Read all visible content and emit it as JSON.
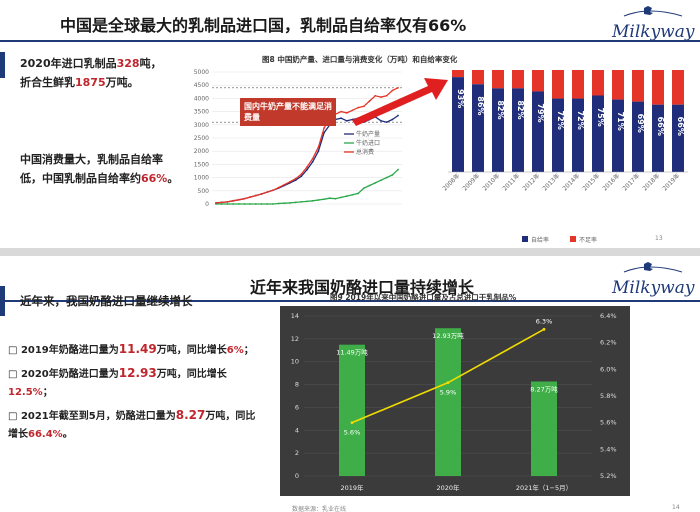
{
  "slide1": {
    "title": "中国是全球最大的乳制品进口国，乳制品自给率仅有66%",
    "logo": "Milkyway",
    "para1": {
      "pre": "2020年进口乳制品",
      "v1": "328",
      "mid": "吨，折合生鲜乳",
      "v2": "1875",
      "post": "万吨。"
    },
    "para2": {
      "pre": "中国消费量大，乳制品自给率低，中国乳制品自给率约",
      "v": "66%",
      "post": "。"
    },
    "left_chart": {
      "title": "图8 中国奶产量、进口量与消费变化（万吨）和自给率变化",
      "callout": "国内牛奶产量不能满足消费量"
    },
    "page_number": "13",
    "colors": {
      "selfsufficiency": "#1f2d7a",
      "shortfall": "#e53528",
      "callout_bg": "#c0392b"
    }
  },
  "slide2": {
    "title": "近年来我国奶酪进口量持续增长",
    "logo": "Milkyway",
    "heading": "近年来，我国奶酪进口量继续增长",
    "bullets": [
      {
        "a": "2019年奶酪进口量为",
        "v1": "11.49",
        "b": "万吨，同比增长",
        "v2": "6%",
        "c": "；"
      },
      {
        "a": "2020年奶酪进口量为",
        "v1": "12.93",
        "b": "万吨，同比增长",
        "v2": "12.5%",
        "c": "；"
      },
      {
        "a": "2021年截至到5月，奶酪进口量为",
        "v1": "8.27",
        "b": "万吨，同比增长",
        "v2": "66.4%",
        "c": "。"
      }
    ],
    "bullet_marker": "□",
    "right_chart": {
      "title": "图9 2019年以来中国奶酪进口量及占总进口干乳制品%"
    },
    "source": "数据来源：乳业在线",
    "page_number": "14",
    "colors": {
      "bar": "#3fae49",
      "line": "#f2dc00",
      "panel_bg": "#3b3b3b"
    }
  },
  "chart_data": [
    {
      "type": "line",
      "title": "图8 中国奶产量、进口量与消费变化（万吨）和自给率变化",
      "ylim": [
        0,
        5000
      ],
      "yticks": [
        0,
        500,
        1000,
        1500,
        2000,
        2500,
        3000,
        3500,
        4000,
        4500,
        5000
      ],
      "series": [
        {
          "name": "牛奶产量",
          "color": "#1f2d7a",
          "values": [
            40,
            60,
            80,
            120,
            160,
            200,
            260,
            320,
            380,
            450,
            520,
            600,
            700,
            800,
            900,
            1050,
            1300,
            1600,
            2000,
            2700,
            3000,
            3200,
            3250,
            3150,
            3200,
            3250,
            3100,
            3200,
            3300,
            3150,
            3100,
            3200,
            3350
          ]
        },
        {
          "name": "牛奶进口",
          "color": "#2aa84a",
          "values": [
            0,
            0,
            0,
            0,
            0,
            0,
            0,
            0,
            0,
            0,
            0,
            20,
            30,
            40,
            60,
            80,
            100,
            120,
            150,
            180,
            220,
            200,
            250,
            300,
            350,
            400,
            600,
            700,
            800,
            900,
            1000,
            1100,
            1300
          ]
        },
        {
          "name": "总消费",
          "color": "#e53528",
          "values": [
            40,
            60,
            80,
            120,
            160,
            200,
            260,
            320,
            380,
            450,
            520,
            620,
            730,
            840,
            960,
            1130,
            1400,
            1720,
            2150,
            2880,
            3250,
            3400,
            3500,
            3450,
            3550,
            3650,
            3700,
            3900,
            4100,
            4050,
            4100,
            4300,
            4400
          ]
        }
      ]
    },
    {
      "type": "bar",
      "stacked": true,
      "categories": [
        "2008年",
        "2009年",
        "2010年",
        "2011年",
        "2012年",
        "2013年",
        "2014年",
        "2015年",
        "2016年",
        "2017年",
        "2018年",
        "2019年"
      ],
      "series": [
        {
          "name": "自给率",
          "color": "#1f2d7a",
          "values": [
            93,
            86,
            82,
            82,
            79,
            72,
            72,
            75,
            71,
            69,
            66,
            66
          ]
        },
        {
          "name": "不足率",
          "color": "#e53528",
          "values": [
            7,
            14,
            18,
            18,
            21,
            28,
            28,
            25,
            29,
            31,
            34,
            34
          ]
        }
      ],
      "ylim": [
        0,
        100
      ],
      "legend": "bottom"
    },
    {
      "type": "bar",
      "title": "图9 2019年以来中国奶酪进口量及占总进口干乳制品%",
      "categories": [
        "2019年",
        "2020年",
        "2021年（1−5月）"
      ],
      "bar_labels": [
        "11.49万吨",
        "12.93万吨",
        "8.27万吨"
      ],
      "values": [
        11.49,
        12.93,
        8.27
      ],
      "ylim": [
        0,
        14
      ],
      "yticks": [
        0,
        2,
        4,
        6,
        8,
        10,
        12,
        14
      ],
      "line": {
        "values": [
          5.6,
          5.9,
          6.3
        ],
        "labels": [
          "5.6%",
          "5.9%",
          "6.3%"
        ],
        "y2lim": [
          5.2,
          6.4
        ],
        "y2ticks": [
          "5.2%",
          "5.4%",
          "5.6%",
          "5.8%",
          "6.0%",
          "6.2%",
          "6.4%"
        ]
      }
    }
  ]
}
